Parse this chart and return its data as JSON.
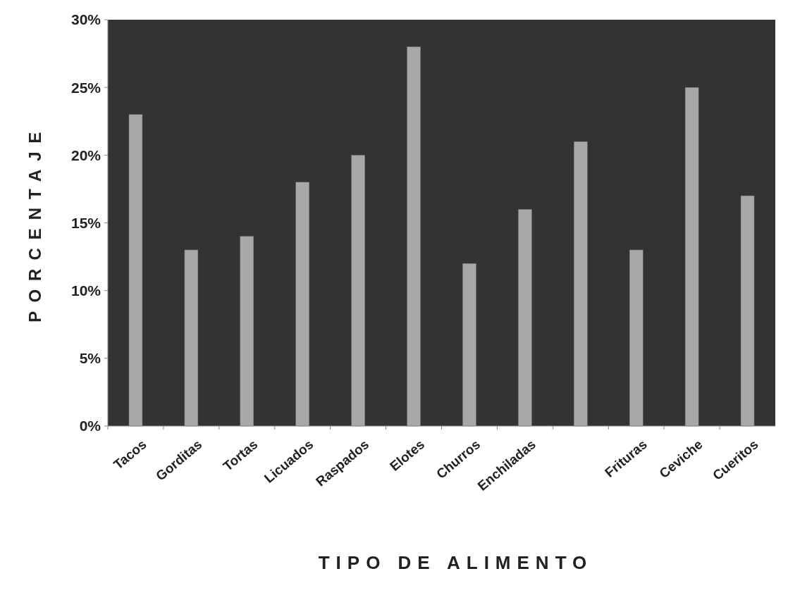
{
  "chart_data": {
    "type": "bar",
    "xlabel": "TIPO DE ALIMENTO",
    "ylabel": "PORCENTAJE",
    "categories": [
      "Tacos",
      "Gorditas",
      "Tortas",
      "Licuados",
      "Raspados",
      "Elotes",
      "Churros",
      "Enchiladas",
      null,
      "Frituras",
      "Ceviche",
      "Cueritos"
    ],
    "values": [
      23,
      13,
      14,
      18,
      20,
      28,
      12,
      16,
      21,
      13,
      25,
      17
    ],
    "color": "#a8a8a8",
    "ylim": [
      0,
      30
    ],
    "yticks": [
      {
        "value": 0,
        "label": "0%"
      },
      {
        "value": 5,
        "label": "5%"
      },
      {
        "value": 10,
        "label": "10%"
      },
      {
        "value": 15,
        "label": "15%"
      },
      {
        "value": 20,
        "label": "20%"
      },
      {
        "value": 25,
        "label": "25%"
      },
      {
        "value": 30,
        "label": "30%"
      }
    ],
    "grid": false
  }
}
